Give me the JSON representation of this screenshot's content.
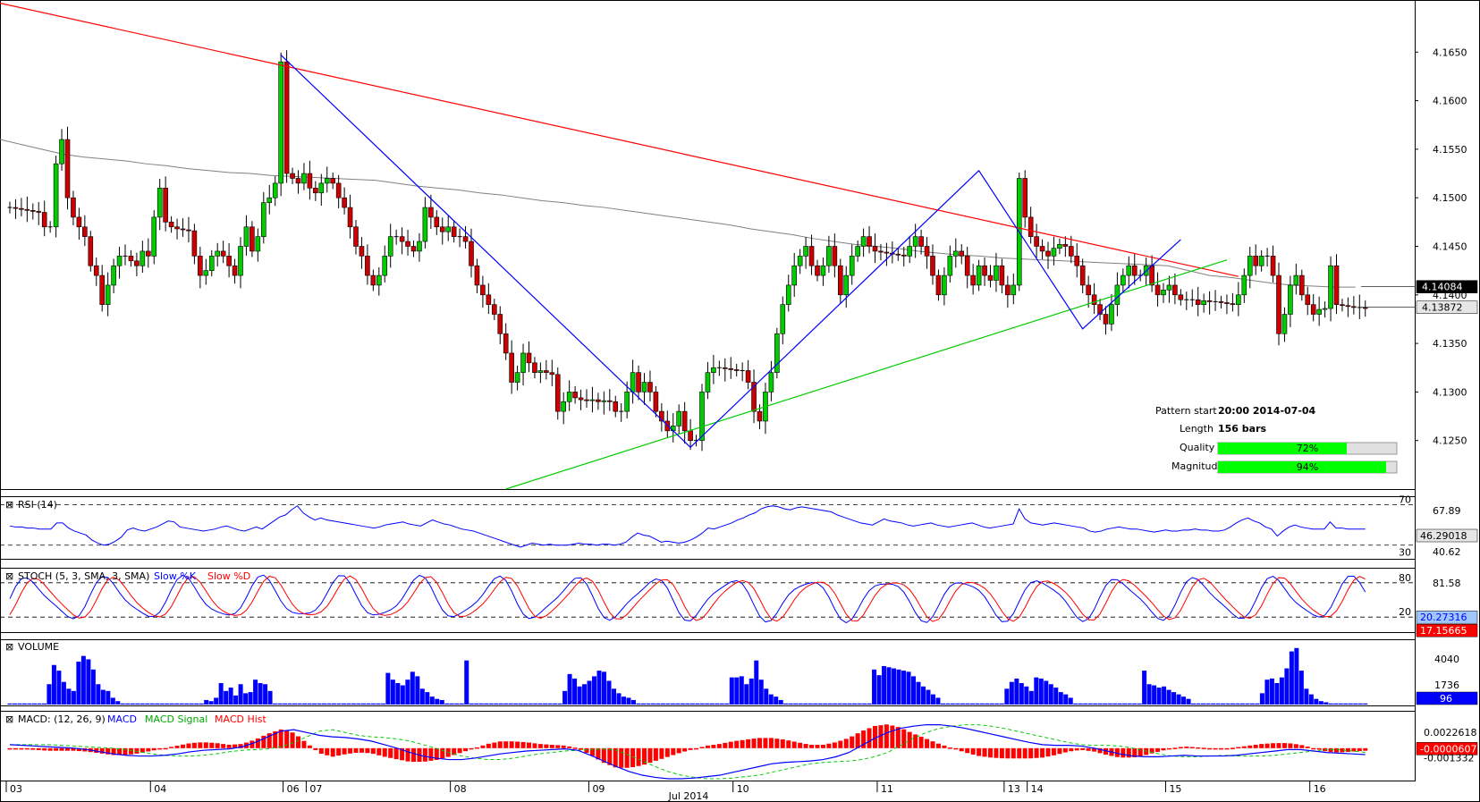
{
  "chart_data": [
    {
      "type": "candlestick",
      "panel": "price",
      "ylim": [
        4.12,
        4.17
      ],
      "y_ticks": [
        "4.1650",
        "4.1600",
        "4.1550",
        "4.1500",
        "4.1450",
        "4.1400",
        "4.1350",
        "4.1300",
        "4.1250"
      ],
      "price_labels": [
        {
          "value": 4.14084,
          "text": "4.14084",
          "bg": "#000000",
          "fg": "#ffffff"
        },
        {
          "value": 4.13872,
          "text": "4.13872",
          "bg": "#e6e6e6",
          "fg": "#000000"
        }
      ],
      "x_date_labels": [
        "03",
        "04",
        "06",
        "07",
        "08",
        "09",
        "10",
        "11",
        "13",
        "14",
        "15",
        "16"
      ],
      "month_label": "Jul 2014",
      "closes": [
        4.149,
        4.1489,
        4.1488,
        4.1487,
        4.1486,
        4.1485,
        4.147,
        4.147,
        4.1535,
        4.156,
        4.15,
        4.148,
        4.147,
        4.146,
        4.143,
        4.142,
        4.139,
        4.141,
        4.143,
        4.144,
        4.144,
        4.1435,
        4.143,
        4.1445,
        4.144,
        4.148,
        4.151,
        4.1475,
        4.147,
        4.1468,
        4.1467,
        4.1466,
        4.144,
        4.142,
        4.1425,
        4.144,
        4.1445,
        4.144,
        4.143,
        4.142,
        4.145,
        4.147,
        4.1445,
        4.146,
        4.1495,
        4.15,
        4.1515,
        4.164,
        4.1525,
        4.152,
        4.1515,
        4.1525,
        4.151,
        4.1505,
        4.1515,
        4.152,
        4.1515,
        4.15,
        4.149,
        4.147,
        4.145,
        4.144,
        4.142,
        4.141,
        4.142,
        4.144,
        4.146,
        4.146,
        4.1455,
        4.145,
        4.1445,
        4.1455,
        4.149,
        4.148,
        4.147,
        4.1465,
        4.147,
        4.146,
        4.146,
        4.1455,
        4.143,
        4.141,
        4.14,
        4.139,
        4.138,
        4.136,
        4.134,
        4.131,
        4.132,
        4.134,
        4.133,
        4.132,
        4.1322,
        4.132,
        4.1318,
        4.128,
        4.129,
        4.13,
        4.1294,
        4.1292,
        4.1291,
        4.1292,
        4.129,
        4.1291,
        4.129,
        4.128,
        4.128,
        4.13,
        4.132,
        4.13,
        4.131,
        4.13,
        4.128,
        4.127,
        4.126,
        4.1265,
        4.128,
        4.126,
        4.125,
        4.125,
        4.13,
        4.132,
        4.1325,
        4.1325,
        4.1324,
        4.1323,
        4.1322,
        4.1322,
        4.131,
        4.128,
        4.127,
        4.13,
        4.132,
        4.136,
        4.139,
        4.141,
        4.143,
        4.144,
        4.145,
        4.143,
        4.142,
        4.143,
        4.145,
        4.143,
        4.14,
        4.142,
        4.144,
        4.145,
        4.146,
        4.145,
        4.1445,
        4.1444,
        4.1443,
        4.1442,
        4.1441,
        4.144,
        4.145,
        4.146,
        4.145,
        4.144,
        4.142,
        4.14,
        4.142,
        4.144,
        4.1445,
        4.144,
        4.142,
        4.141,
        4.143,
        4.142,
        4.1415,
        4.143,
        4.141,
        4.14,
        4.141,
        4.152,
        4.148,
        4.146,
        4.145,
        4.1445,
        4.144,
        4.1448,
        4.1452,
        4.145,
        4.144,
        4.143,
        4.141,
        4.14,
        4.139,
        4.138,
        4.137,
        4.139,
        4.141,
        4.142,
        4.143,
        4.142,
        4.142,
        4.143,
        4.141,
        4.14,
        4.1405,
        4.141,
        4.14,
        4.1395,
        4.1395,
        4.1395,
        4.139,
        4.1394,
        4.1393,
        4.1393,
        4.1392,
        4.1391,
        4.139,
        4.14,
        4.142,
        4.144,
        4.143,
        4.144,
        4.144,
        4.142,
        4.136,
        4.138,
        4.141,
        4.142,
        4.14,
        4.139,
        4.138,
        4.1385,
        4.1386,
        4.143,
        4.139,
        4.1389,
        4.1388,
        4.1387,
        4.1387,
        4.1386
      ],
      "ma": [
        4.156,
        4.1555,
        4.155,
        4.1545,
        4.1542,
        4.154,
        4.1538,
        4.1535,
        4.1533,
        4.153,
        4.1528,
        4.1526,
        4.1525,
        4.1523,
        4.1522,
        4.1521,
        4.152,
        4.1519,
        4.1518,
        4.1515,
        4.1512,
        4.151,
        4.1508,
        4.1505,
        4.1503,
        4.15,
        4.1497,
        4.1495,
        4.1492,
        4.149,
        4.1487,
        4.1484,
        4.1481,
        4.1478,
        4.1475,
        4.1472,
        4.1468,
        4.1465,
        4.1462,
        4.1458,
        4.1455,
        4.1452,
        4.145,
        4.1448,
        4.1445,
        4.1443,
        4.1441,
        4.144,
        4.1438,
        4.1437,
        4.1436,
        4.1435,
        4.1434,
        4.1433,
        4.1432,
        4.1431,
        4.143,
        4.1425,
        4.142,
        4.1418,
        4.1415,
        4.1412,
        4.141,
        4.1409,
        4.1408,
        4.1408
      ],
      "trendlines": [
        {
          "name": "resistance",
          "color": "#ff0000",
          "points": [
            [
              -9,
              4.171
            ],
            [
              213,
              4.1419
            ]
          ]
        },
        {
          "name": "support",
          "color": "#00cc00",
          "points": [
            [
              86,
              4.12
            ],
            [
              211,
              4.1436
            ]
          ]
        }
      ],
      "zigzag": {
        "color": "#0000ff",
        "points": [
          [
            47,
            4.1647
          ],
          [
            118,
            4.1243
          ],
          [
            168,
            4.1528
          ],
          [
            186,
            4.1365
          ],
          [
            203,
            4.1457
          ]
        ]
      },
      "info_box": {
        "rows": [
          {
            "label": "Pattern start",
            "value": "20:00 2014-07-04"
          },
          {
            "label": "Length",
            "value": "156 bars"
          }
        ],
        "bars": [
          {
            "label": "Quality",
            "value": 72,
            "text": "72%"
          },
          {
            "label": "Magnitude",
            "value": 94,
            "text": "94%"
          }
        ]
      },
      "colors": {
        "bull": "#00cc00",
        "bear": "#cc0000",
        "ma": "#808080",
        "bg": "#ffffff"
      }
    },
    {
      "type": "line",
      "panel": "rsi",
      "title": "RSI (14)",
      "levels": [
        70,
        30
      ],
      "level_labels": [
        "70",
        "30"
      ],
      "extra_labels": [
        "67.89",
        "40.62"
      ],
      "current": "46.29018",
      "ylim": [
        20,
        75
      ],
      "values": [
        49,
        48,
        48,
        47,
        47,
        46,
        46,
        46,
        52,
        52,
        47,
        44,
        42,
        40,
        35,
        32,
        30,
        31,
        34,
        38,
        45,
        47,
        45,
        44,
        46,
        48,
        51,
        54,
        53,
        48,
        47,
        46,
        45,
        44,
        45,
        46,
        48,
        49,
        47,
        45,
        44,
        46,
        48,
        46,
        50,
        54,
        58,
        60,
        65,
        69,
        62,
        58,
        55,
        57,
        55,
        54,
        53,
        52,
        51,
        50,
        49,
        48,
        47,
        48,
        50,
        51,
        52,
        53,
        51,
        50,
        49,
        52,
        55,
        53,
        51,
        50,
        48,
        46,
        45,
        44,
        42,
        40,
        38,
        36,
        34,
        32,
        30,
        28,
        30,
        32,
        31,
        30,
        31,
        30,
        30,
        30,
        31,
        32,
        31,
        31,
        30,
        31,
        31,
        30,
        31,
        33,
        38,
        42,
        40,
        39,
        36,
        33,
        34,
        33,
        32,
        33,
        35,
        38,
        42,
        47,
        46,
        48,
        50,
        52,
        55,
        57,
        60,
        62,
        66,
        68,
        69,
        68,
        66,
        65,
        67,
        68,
        67,
        66,
        65,
        64,
        63,
        60,
        58,
        56,
        54,
        52,
        51,
        50,
        53,
        56,
        54,
        53,
        52,
        50,
        49,
        50,
        51,
        52,
        50,
        49,
        48,
        49,
        50,
        51,
        52,
        50,
        48,
        47,
        48,
        49,
        50,
        51,
        66,
        56,
        52,
        51,
        50,
        51,
        52,
        51,
        50,
        49,
        48,
        47,
        44,
        43,
        44,
        46,
        47,
        48,
        47,
        46,
        46,
        45,
        44,
        43,
        44,
        45,
        44,
        44,
        45,
        45,
        46,
        45,
        45,
        44,
        44,
        45,
        48,
        52,
        55,
        57,
        54,
        52,
        48,
        46,
        39,
        44,
        48,
        50,
        48,
        47,
        46,
        46,
        46,
        53,
        47,
        47,
        46,
        46,
        46,
        46
      ]
    },
    {
      "type": "line",
      "panel": "stoch",
      "title": "STOCH (5, 3, SMA, 3, SMA)",
      "legend": [
        "Slow %K",
        "Slow %D"
      ],
      "levels": [
        80,
        20
      ],
      "level_labels": [
        "80",
        "20"
      ],
      "extra_labels": [
        "81.58",
        "20.27316"
      ],
      "current": "17.15665",
      "ylim": [
        0,
        100
      ],
      "wave": {
        "k_mean": 52,
        "k_amp": 34,
        "period": 13.5
      }
    },
    {
      "type": "bar",
      "panel": "volume",
      "title": "VOLUME",
      "y_labels": [
        "4040",
        "1736"
      ],
      "y_label_values": [
        4040,
        1736
      ],
      "current": "96",
      "ylim": [
        0,
        5300
      ],
      "values": [
        96,
        96,
        96,
        96,
        96,
        96,
        96,
        96,
        1800,
        3500,
        3000,
        2000,
        1400,
        1200,
        3800,
        4300,
        4000,
        3100,
        1800,
        1300,
        1200,
        600,
        300,
        96,
        96,
        96,
        96,
        96,
        96,
        96,
        96,
        96,
        96,
        96,
        96,
        96,
        96,
        96,
        96,
        96,
        400,
        300,
        600,
        1900,
        1200,
        1500,
        800,
        1800,
        1000,
        1100,
        2200,
        1900,
        1800,
        1200,
        96,
        96,
        96,
        96,
        96,
        96,
        96,
        96,
        96,
        96,
        96,
        96,
        96,
        96,
        96,
        96,
        96,
        96,
        96,
        96,
        96,
        96,
        96,
        2800,
        2200,
        1900,
        1700,
        2200,
        2900,
        2500,
        1400,
        1100,
        700,
        500,
        400,
        96,
        96,
        96,
        96,
        3900,
        96,
        96,
        96,
        96,
        96,
        96,
        96,
        96,
        96,
        96,
        96,
        96,
        96,
        96,
        96,
        96,
        96,
        96,
        96,
        1200,
        2700,
        2300,
        1600,
        1800,
        2100,
        2500,
        3000,
        2900,
        2100,
        1400,
        1000,
        700,
        600,
        400,
        96,
        96,
        96,
        96,
        96,
        96,
        96,
        96,
        96,
        96,
        96,
        96,
        96,
        96,
        96,
        96,
        96,
        96,
        96,
        2400,
        2400,
        2500,
        1800,
        2300,
        3900,
        2200,
        1400,
        900,
        700,
        400,
        96,
        96,
        96,
        96,
        96,
        96,
        96,
        96,
        96,
        96,
        96,
        96,
        96,
        96,
        96,
        96,
        96,
        96,
        3100,
        2600,
        3400,
        3300,
        3200,
        3100,
        3000,
        2900,
        2500,
        2000,
        1600,
        1300,
        900,
        600,
        96,
        96,
        96,
        96,
        96,
        96,
        96,
        96,
        96,
        96,
        96,
        96,
        96,
        1400,
        2000,
        2300,
        1900,
        1600,
        1200,
        2400,
        2300,
        2100,
        1800,
        1500,
        1100,
        900,
        600,
        96,
        96,
        96,
        96,
        96,
        96,
        96,
        96,
        96,
        96,
        96,
        96,
        96,
        96,
        3000,
        1800,
        1700,
        1500,
        1600,
        1300,
        1100,
        900,
        700,
        500,
        96,
        96,
        96,
        96,
        96,
        96,
        96,
        96,
        96,
        96,
        96,
        96,
        96,
        96,
        1000,
        2200,
        2300,
        1900,
        2400,
        3200,
        4700,
        5000,
        3000,
        1400,
        900,
        500,
        300,
        200,
        96,
        96,
        96,
        96,
        96,
        96,
        96,
        96
      ]
    },
    {
      "type": "line",
      "panel": "macd",
      "title": "MACD: (12, 26, 9)",
      "legend": [
        "MACD",
        "MACD Signal",
        "MACD Hist"
      ],
      "y_labels": [
        "0.0022618",
        "-0.0000607",
        "-0.001332"
      ],
      "y_label_values": [
        0.0022618,
        -6.07e-05,
        -0.001332
      ],
      "current": "-0.0000607",
      "ylim": [
        -0.0043,
        0.0035
      ],
      "macd": [
        0.0005,
        0.0004,
        0.0003,
        0.0002,
        0.0001,
        0.0,
        -0.0002,
        -0.0005,
        -0.0008,
        -0.001,
        -0.0011,
        -0.0011,
        -0.001,
        -0.0008,
        -0.0005,
        -0.0003,
        -0.0002,
        -0.0001,
        0.0002,
        0.0008,
        0.0016,
        0.0024,
        0.0026,
        0.0022,
        0.0018,
        0.0016,
        0.0015,
        0.0013,
        0.001,
        0.0005,
        0.0,
        -0.0006,
        -0.0011,
        -0.0014,
        -0.0016,
        -0.0016,
        -0.0014,
        -0.0011,
        -0.0008,
        -0.0006,
        -0.0004,
        -0.0003,
        -0.0002,
        -0.0001,
        -0.0003,
        -0.001,
        -0.0018,
        -0.0026,
        -0.0033,
        -0.0038,
        -0.0041,
        -0.0043,
        -0.0043,
        -0.0042,
        -0.004,
        -0.0038,
        -0.0034,
        -0.003,
        -0.0026,
        -0.0022,
        -0.002,
        -0.0019,
        -0.0018,
        -0.0016,
        -0.0012,
        -0.0006,
        0.0004,
        0.0014,
        0.0022,
        0.0028,
        0.0031,
        0.0033,
        0.0033,
        0.0031,
        0.0028,
        0.0024,
        0.002,
        0.0016,
        0.0012,
        0.0008,
        0.0005,
        0.0004,
        0.0004,
        0.0003,
        0.0,
        -0.0004,
        -0.0008,
        -0.0011,
        -0.0012,
        -0.0012,
        -0.0011,
        -0.001,
        -0.0011,
        -0.0011,
        -0.0011,
        -0.001,
        -0.0008,
        -0.0006,
        -0.0004,
        -0.0002,
        -0.0002,
        -0.0004,
        -0.0006,
        -0.0007,
        -0.0008,
        -0.0009
      ],
      "signal_shift": 3,
      "hist_scale": 1.0
    }
  ]
}
